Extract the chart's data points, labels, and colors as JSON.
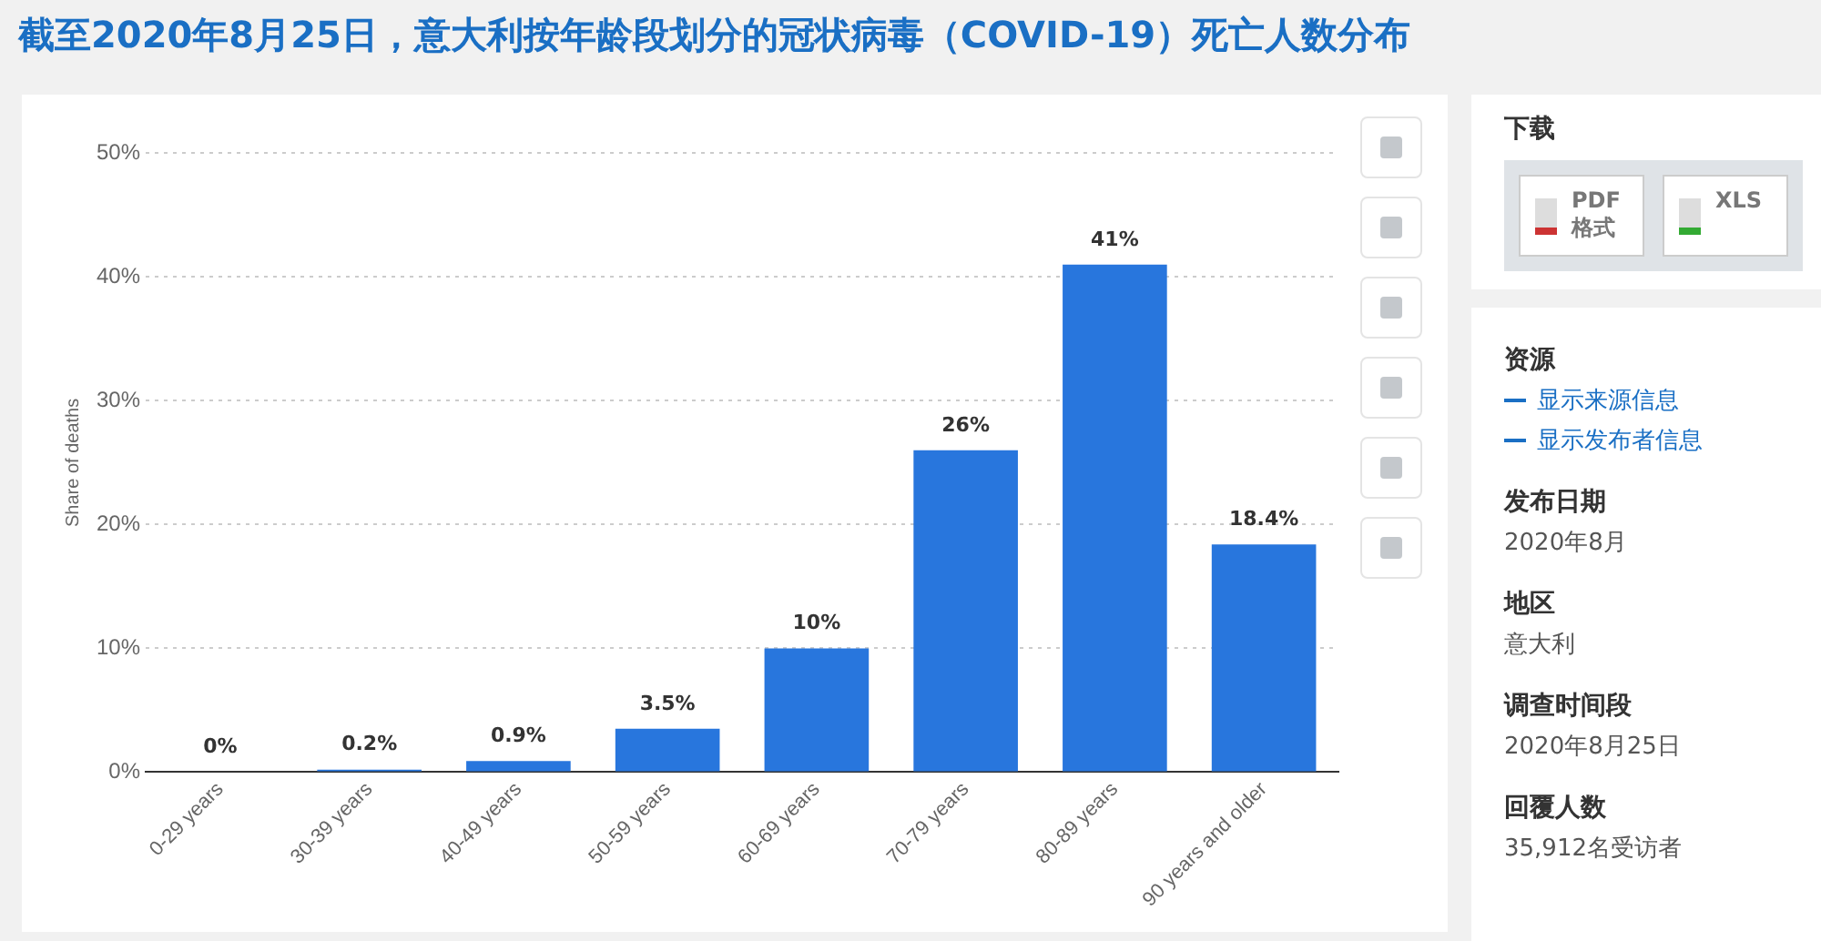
{
  "chart_data": {
    "type": "bar",
    "title": "截至2020年8月25日，意大利按年龄段划分的冠状病毒（COVID-19）死亡人数分布",
    "ylabel": "Share of deaths",
    "categories": [
      "0-29 years",
      "30-39 years",
      "40-49 years",
      "50-59 years",
      "60-69 years",
      "70-79 years",
      "80-89 years",
      "90 years and older"
    ],
    "values": [
      0,
      0.2,
      0.9,
      3.5,
      10,
      26,
      41,
      18.4
    ],
    "value_labels": [
      "0%",
      "0.2%",
      "0.9%",
      "3.5%",
      "10%",
      "26%",
      "41%",
      "18.4%"
    ],
    "color": "#2876dd",
    "ylim": [
      0,
      50
    ],
    "yticks": [
      {
        "value": 0,
        "label": "0%"
      },
      {
        "value": 10,
        "label": "10%"
      },
      {
        "value": 20,
        "label": "20%"
      },
      {
        "value": 30,
        "label": "30%"
      },
      {
        "value": 40,
        "label": "40%"
      },
      {
        "value": 50,
        "label": "50%"
      }
    ],
    "grid": "y",
    "legend": false,
    "annotations": [
      "下载",
      "PDF 格式",
      "XLS",
      "资源",
      "显示来源信息",
      "显示发布者信息",
      "发布日期",
      "2020年8月",
      "地区",
      "意大利",
      "调查时间段",
      "2020年8月25日",
      "回覆人数",
      "35,912名受访者"
    ]
  }
}
